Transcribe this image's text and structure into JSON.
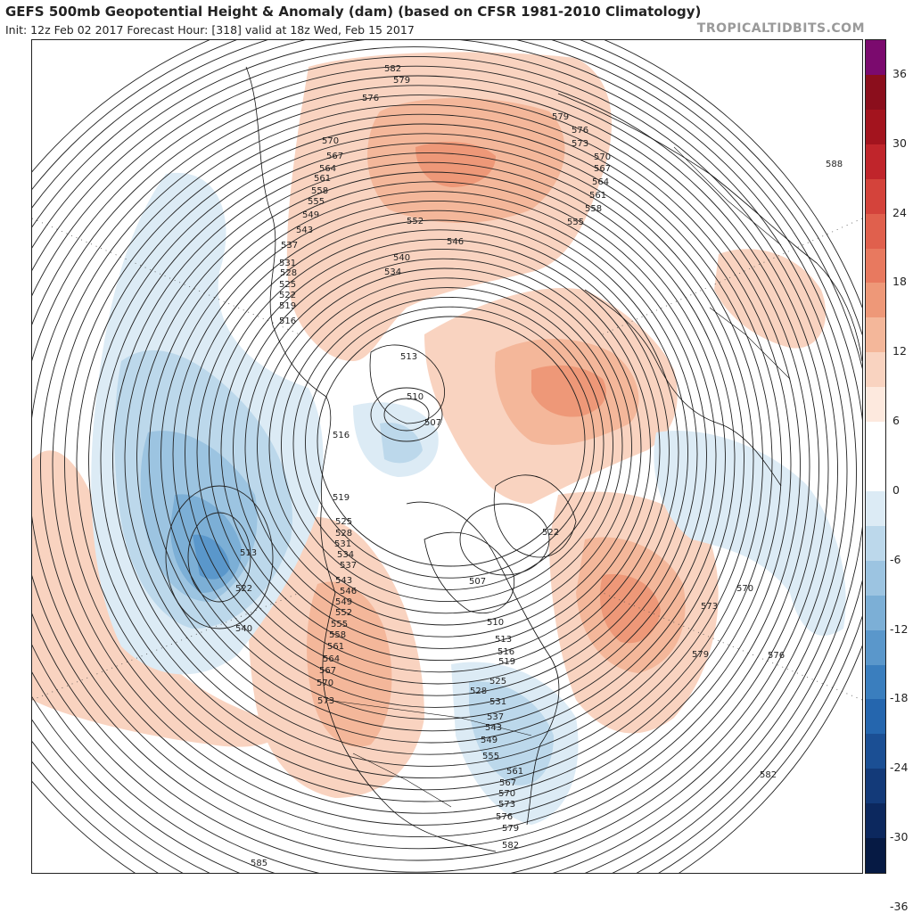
{
  "header": {
    "title": "GEFS 500mb Geopotential Height & Anomaly (dam) (based on CFSR 1981-2010 Climatology)",
    "subtitle": "Init: 12z Feb 02 2017   Forecast Hour: [318]   valid at 18z Wed, Feb 15 2017",
    "credit": "TROPICALTIDBITS.COM"
  },
  "colorbar": {
    "ticks": [
      "36",
      "30",
      "24",
      "18",
      "12",
      "6",
      "0",
      "-6",
      "-12",
      "-18",
      "-24",
      "-30",
      "-36"
    ],
    "colors": [
      "#7b0a6e",
      "#8b0e1c",
      "#a3141e",
      "#c0252b",
      "#d4433b",
      "#e0604d",
      "#e8795f",
      "#ee9878",
      "#f4b79a",
      "#f9d3c0",
      "#fde9de",
      "#ffffff",
      "#ffffff",
      "#dcebf5",
      "#bcd8eb",
      "#9cc4e1",
      "#7cafd6",
      "#5a97cb",
      "#3a7ebe",
      "#2566ae",
      "#1b4f94",
      "#133a79",
      "#0c285e",
      "#061a44"
    ]
  },
  "map": {
    "contour_labels": [
      {
        "text": "582"
      },
      {
        "text": "579"
      },
      {
        "text": "576"
      },
      {
        "text": "570"
      },
      {
        "text": "567"
      },
      {
        "text": "564"
      },
      {
        "text": "561"
      },
      {
        "text": "558"
      },
      {
        "text": "555"
      },
      {
        "text": "549"
      },
      {
        "text": "543"
      },
      {
        "text": "537"
      },
      {
        "text": "531"
      },
      {
        "text": "528"
      },
      {
        "text": "525"
      },
      {
        "text": "522"
      },
      {
        "text": "519"
      },
      {
        "text": "516"
      },
      {
        "text": "552"
      },
      {
        "text": "546"
      },
      {
        "text": "540"
      },
      {
        "text": "534"
      },
      {
        "text": "513"
      },
      {
        "text": "510"
      },
      {
        "text": "507"
      },
      {
        "text": "516"
      },
      {
        "text": "519"
      },
      {
        "text": "579"
      },
      {
        "text": "576"
      },
      {
        "text": "573"
      },
      {
        "text": "570"
      },
      {
        "text": "567"
      },
      {
        "text": "564"
      },
      {
        "text": "561"
      },
      {
        "text": "558"
      },
      {
        "text": "555"
      },
      {
        "text": "588"
      },
      {
        "text": "513"
      },
      {
        "text": "522"
      },
      {
        "text": "540"
      },
      {
        "text": "525"
      },
      {
        "text": "528"
      },
      {
        "text": "531"
      },
      {
        "text": "534"
      },
      {
        "text": "537"
      },
      {
        "text": "543"
      },
      {
        "text": "546"
      },
      {
        "text": "549"
      },
      {
        "text": "552"
      },
      {
        "text": "555"
      },
      {
        "text": "558"
      },
      {
        "text": "561"
      },
      {
        "text": "564"
      },
      {
        "text": "567"
      },
      {
        "text": "570"
      },
      {
        "text": "573"
      },
      {
        "text": "522"
      },
      {
        "text": "507"
      },
      {
        "text": "510"
      },
      {
        "text": "513"
      },
      {
        "text": "516"
      },
      {
        "text": "519"
      },
      {
        "text": "525"
      },
      {
        "text": "528"
      },
      {
        "text": "531"
      },
      {
        "text": "537"
      },
      {
        "text": "543"
      },
      {
        "text": "549"
      },
      {
        "text": "555"
      },
      {
        "text": "561"
      },
      {
        "text": "567"
      },
      {
        "text": "570"
      },
      {
        "text": "573"
      },
      {
        "text": "576"
      },
      {
        "text": "579"
      },
      {
        "text": "582"
      },
      {
        "text": "570"
      },
      {
        "text": "573"
      },
      {
        "text": "579"
      },
      {
        "text": "576"
      },
      {
        "text": "582"
      },
      {
        "text": "585"
      }
    ]
  }
}
